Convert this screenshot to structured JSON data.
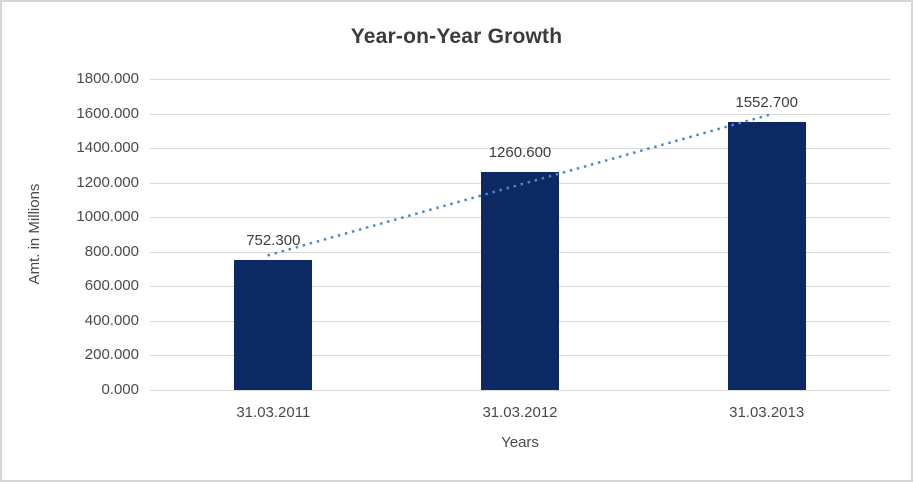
{
  "frame": {
    "background": "#ffffff",
    "border_color": "#d6d6d6"
  },
  "chart_data": {
    "type": "bar",
    "title": "Year-on-Year Growth",
    "xlabel": "Years",
    "ylabel": "Amt. in Millions",
    "categories": [
      "31.03.2011",
      "31.03.2012",
      "31.03.2013"
    ],
    "values": [
      752.3,
      1260.6,
      1552.7
    ],
    "data_labels": [
      "752.300",
      "1260.600",
      "1552.700"
    ],
    "ylim": [
      0,
      1800
    ],
    "y_tick_step": 200,
    "y_tick_labels": [
      "0.000",
      "200.000",
      "400.000",
      "600.000",
      "800.000",
      "1000.000",
      "1200.000",
      "1400.000",
      "1600.000",
      "1800.000"
    ],
    "grid": true,
    "legend": false,
    "bar_color": "#0d2963",
    "gridline_color": "#d9d9d9",
    "axis_text_color": "#4a4a4a",
    "title_color": "#3b3b3b",
    "trendline": {
      "type": "linear",
      "style": "dotted",
      "color": "#4f86c8"
    }
  }
}
